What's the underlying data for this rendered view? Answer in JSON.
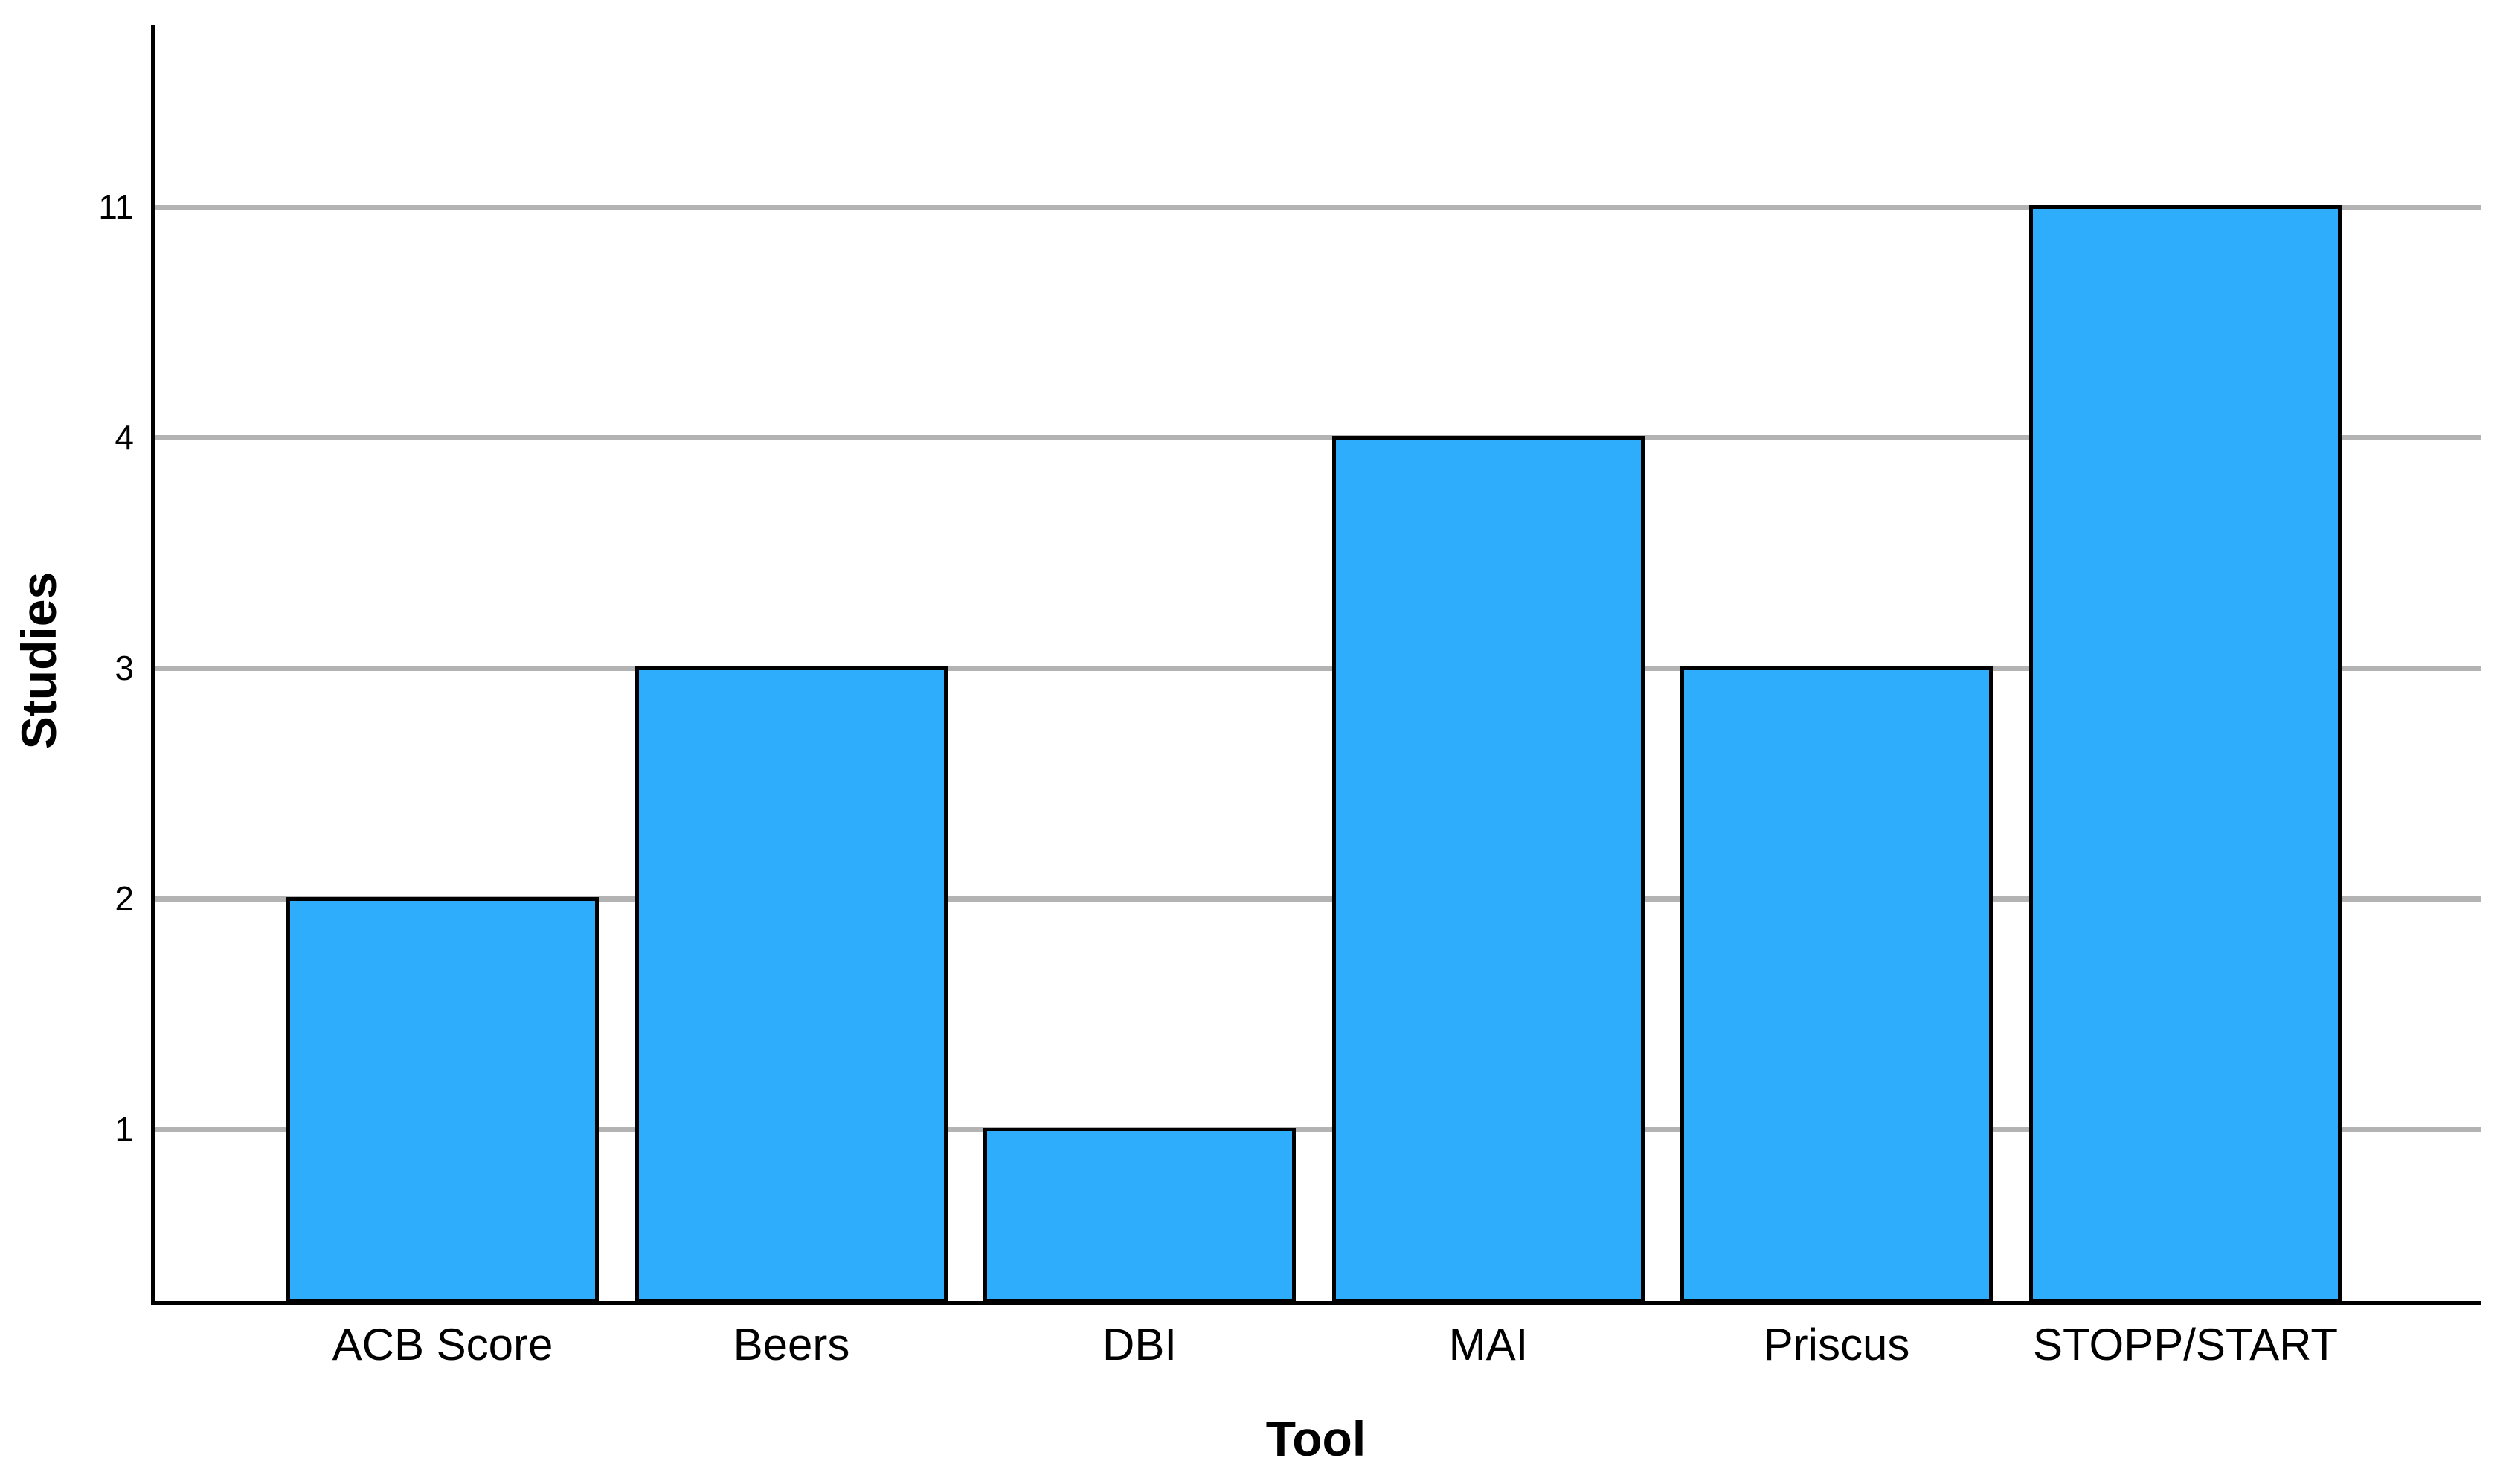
{
  "chart_data": {
    "type": "bar",
    "title": "",
    "xlabel": "Tool",
    "ylabel": "Studies",
    "categories": [
      "ACB Score",
      "Beers",
      "DBI",
      "MAI",
      "Priscus",
      "STOPP/START"
    ],
    "values": [
      2,
      3,
      1,
      4,
      3,
      11
    ],
    "yticks": [
      1,
      2,
      3,
      4,
      11
    ],
    "ytick_labels": [
      "1",
      "2",
      "3",
      "4",
      "11"
    ],
    "y_axis_note": "tick values are evenly spaced on the axis (non-linear scale; 4 to 11 spans one step)",
    "grid": "horizontal gridlines at every y tick, drawn behind bars",
    "legend": "none",
    "series_count": 1
  },
  "colors": {
    "bar_fill": "#2FADFD",
    "bar_border": "#000000",
    "gridline": "#B3B3B3",
    "axis": "#000000",
    "background": "#FFFFFF",
    "text": "#000000"
  }
}
